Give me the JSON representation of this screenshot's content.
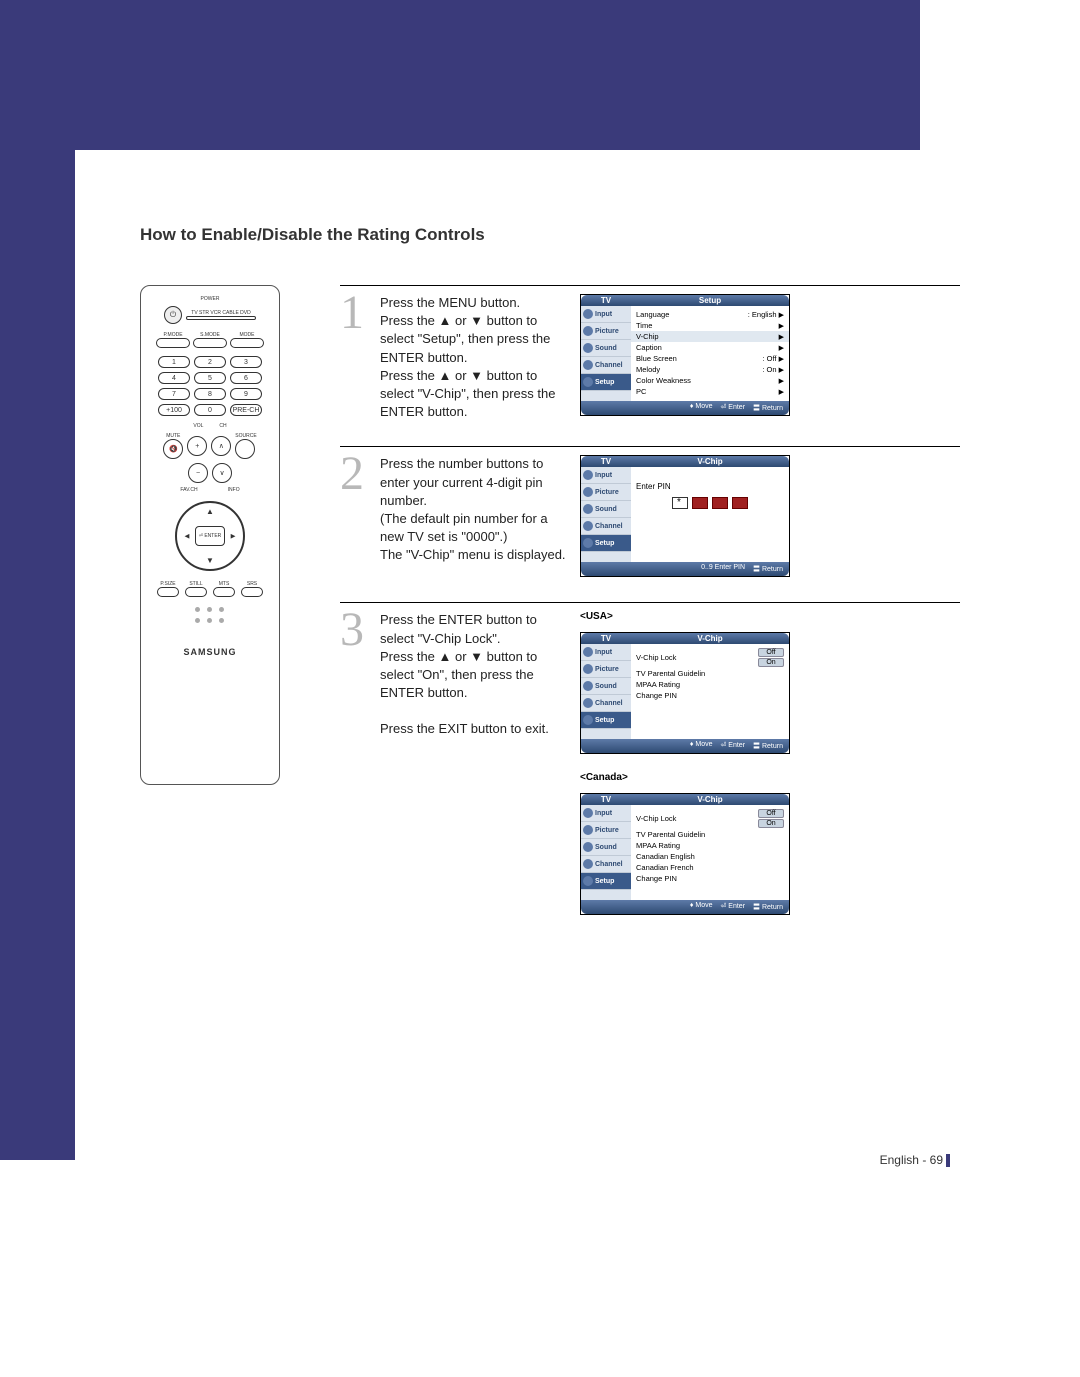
{
  "title": "How to Enable/Disable the Rating Controls",
  "remote": {
    "power": "POWER",
    "mode_labels": "TV  STR  VCR  CABLE  DVD",
    "modes": [
      "P.MODE",
      "S.MODE",
      "MODE"
    ],
    "nums": [
      "1",
      "2",
      "3",
      "4",
      "5",
      "6",
      "7",
      "8",
      "9",
      "+100",
      "0",
      "PRE-CH"
    ],
    "vol": "VOL",
    "ch": "CH",
    "mute": "MUTE",
    "source": "SOURCE",
    "favch": "FAV.CH",
    "info": "INFO",
    "nav": [
      "▲",
      "▼",
      "◄",
      "►"
    ],
    "enter": "⏎\nENTER",
    "bottom": [
      "P.SIZE",
      "STILL",
      "MTS",
      "SRS"
    ],
    "brand": "SAMSUNG"
  },
  "steps": [
    {
      "num": "1",
      "text": "Press the MENU button.\nPress the ▲ or ▼ button to select \"Setup\", then press the ENTER button.\nPress the ▲ or ▼ button to select \"V-Chip\", then press the ENTER button."
    },
    {
      "num": "2",
      "text": "Press the number buttons to enter your current 4-digit pin number.\n(The default pin number for a new TV set is \"0000\".)\nThe \"V-Chip\" menu is displayed."
    },
    {
      "num": "3",
      "text": "Press the ENTER button to select \"V-Chip Lock\".\nPress the ▲ or ▼ button to select \"On\", then press the ENTER button.\n\nPress the EXIT button to exit."
    }
  ],
  "osd_side": [
    "Input",
    "Picture",
    "Sound",
    "Channel",
    "Setup"
  ],
  "osd_tv": "TV",
  "osd1": {
    "title": "Setup",
    "rows": [
      {
        "l": "Language",
        "r": ": English",
        "a": "▶"
      },
      {
        "l": "Time",
        "r": "",
        "a": "▶"
      },
      {
        "l": "V-Chip",
        "r": "",
        "a": "▶",
        "sel": true
      },
      {
        "l": "Caption",
        "r": "",
        "a": "▶"
      },
      {
        "l": "Blue Screen",
        "r": ": Off",
        "a": "▶"
      },
      {
        "l": "Melody",
        "r": ": On",
        "a": "▶"
      },
      {
        "l": "Color Weakness",
        "r": "",
        "a": "▶"
      },
      {
        "l": "PC",
        "r": "",
        "a": "▶"
      }
    ],
    "footer": [
      "♦ Move",
      "⏎ Enter",
      "〓 Return"
    ]
  },
  "osd2": {
    "title": "V-Chip",
    "prompt": "Enter PIN",
    "footer": [
      "0..9 Enter PIN",
      "〓 Return"
    ]
  },
  "region_usa": "<USA>",
  "osd3": {
    "title": "V-Chip",
    "rows": [
      {
        "l": "V-Chip Lock",
        "offon": [
          "Off",
          "On"
        ]
      },
      {
        "l": "TV Parental Guidelin"
      },
      {
        "l": "MPAA Rating"
      },
      {
        "l": "Change PIN"
      }
    ],
    "footer": [
      "♦ Move",
      "⏎ Enter",
      "〓 Return"
    ]
  },
  "region_can": "<Canada>",
  "osd4": {
    "title": "V-Chip",
    "rows": [
      {
        "l": "V-Chip Lock",
        "offon": [
          "Off",
          "On"
        ]
      },
      {
        "l": "TV Parental Guidelin"
      },
      {
        "l": "MPAA Rating"
      },
      {
        "l": "Canadian English"
      },
      {
        "l": "Canadian French"
      },
      {
        "l": "Change PIN"
      }
    ],
    "footer": [
      "♦ Move",
      "⏎ Enter",
      "〓 Return"
    ]
  },
  "page_footer": "English - 69"
}
